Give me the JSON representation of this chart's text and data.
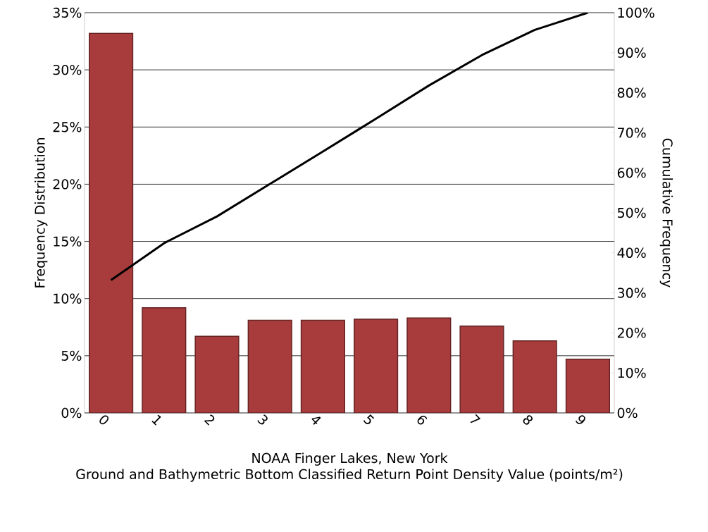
{
  "chart_data": {
    "type": "bar",
    "title": "NOAA Finger Lakes, New York",
    "xlabel": "Ground and Bathymetric Bottom Classified Return Point Density Value (points/m²)",
    "ylabel": "Frequency Distribution",
    "y2label": "Cumulative Frequency",
    "categories": [
      "0",
      "1",
      "2",
      "3",
      "4",
      "5",
      "6",
      "7",
      "8",
      "9"
    ],
    "series": [
      {
        "color": "#a83c3c",
        "values": [
          33.2,
          9.2,
          6.7,
          8.1,
          8.1,
          8.2,
          8.3,
          7.6,
          6.3,
          4.7
        ]
      },
      {
        "type": "line",
        "axis": "y2",
        "color": "#000000",
        "values": [
          33.2,
          42.4,
          49.1,
          57.2,
          65.3,
          73.5,
          81.8,
          89.4,
          95.7,
          100
        ]
      }
    ],
    "ylim": [
      0,
      35
    ],
    "yticks": [
      {
        "value": 0,
        "label": "0%"
      },
      {
        "value": 5,
        "label": "5%"
      },
      {
        "value": 10,
        "label": "10%"
      },
      {
        "value": 15,
        "label": "15%"
      },
      {
        "value": 20,
        "label": "20%"
      },
      {
        "value": 25,
        "label": "25%"
      },
      {
        "value": 30,
        "label": "30%"
      },
      {
        "value": 35,
        "label": "35%"
      }
    ],
    "y2lim": [
      0,
      100
    ],
    "y2ticks": [
      {
        "value": 0,
        "label": "0%"
      },
      {
        "value": 10,
        "label": "10%"
      },
      {
        "value": 20,
        "label": "20%"
      },
      {
        "value": 30,
        "label": "30%"
      },
      {
        "value": 40,
        "label": "40%"
      },
      {
        "value": 50,
        "label": "50%"
      },
      {
        "value": 60,
        "label": "60%"
      },
      {
        "value": 70,
        "label": "70%"
      },
      {
        "value": 80,
        "label": "80%"
      },
      {
        "value": 90,
        "label": "90%"
      },
      {
        "value": 100,
        "label": "100%"
      }
    ],
    "grid": "y"
  }
}
